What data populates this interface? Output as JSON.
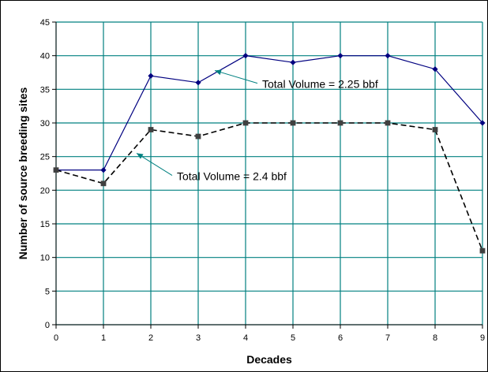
{
  "chart_data": {
    "type": "line",
    "title": "",
    "xlabel": "Decades",
    "ylabel": "Number of source breeding sites",
    "x": [
      0,
      1,
      2,
      3,
      4,
      5,
      6,
      7,
      8,
      9
    ],
    "xlim": [
      0,
      9
    ],
    "ylim": [
      0,
      45
    ],
    "xticks": [
      "0",
      "1",
      "2",
      "3",
      "4",
      "5",
      "6",
      "7",
      "8",
      "9"
    ],
    "yticks": [
      "0",
      "5",
      "10",
      "15",
      "20",
      "25",
      "30",
      "35",
      "40",
      "45"
    ],
    "grid": true,
    "grid_color": "#008080",
    "series": [
      {
        "values": [
          23,
          23,
          37,
          36,
          40,
          39,
          40,
          40,
          38,
          30
        ],
        "color": "#000080",
        "line_style": "solid",
        "marker": "diamond"
      },
      {
        "values": [
          23,
          21,
          29,
          28,
          30,
          30,
          30,
          30,
          29,
          11
        ],
        "color": "#000000",
        "marker_color": "#404040",
        "line_style": "dashed",
        "marker": "square"
      }
    ],
    "annotations": [
      {
        "text": "Total Volume = 2.25 bbf",
        "x_at": 4.35,
        "y_at": 35.2,
        "arrow_to_x": 3.35,
        "arrow_to_y": 37.8
      },
      {
        "text": "Total Volume = 2.4 bbf",
        "x_at": 2.55,
        "y_at": 21.5,
        "arrow_to_x": 1.7,
        "arrow_to_y": 25.5
      }
    ],
    "annotation_arrow_color": "#008080"
  }
}
